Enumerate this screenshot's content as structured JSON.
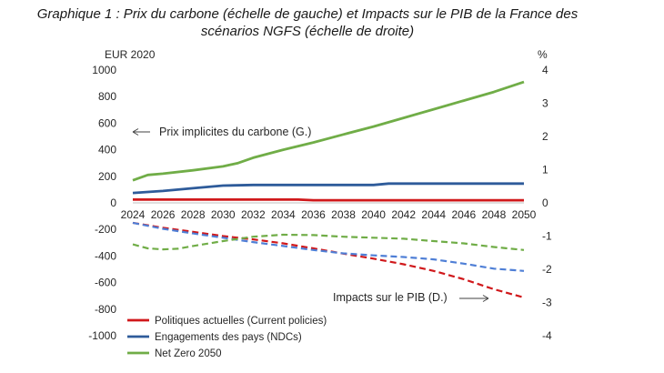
{
  "chart_data": {
    "type": "line",
    "title_line1": "Graphique 1 : Prix du carbone (échelle de gauche) et Impacts sur le PIB de la France des",
    "title_line2": "scénarios NGFS (échelle de droite)",
    "y_left_unit": "EUR 2020",
    "y_right_unit": "%",
    "y_left_range": [
      -1000,
      1000
    ],
    "y_left_ticks": [
      1000,
      800,
      600,
      400,
      200,
      0,
      -200,
      -400,
      -600,
      -800,
      -1000
    ],
    "y_right_range": [
      -4,
      4
    ],
    "y_right_ticks": [
      4,
      3,
      2,
      1,
      0,
      -1,
      -2,
      -3,
      -4
    ],
    "x_ticks": [
      2024,
      2026,
      2028,
      2030,
      2032,
      2034,
      2036,
      2038,
      2040,
      2042,
      2044,
      2046,
      2048,
      2050
    ],
    "x_range": [
      2024,
      2050
    ],
    "annotation_carbon": "Prix implicites du carbone (G.)",
    "annotation_pib": "Impacts sur le PIB (D.)",
    "colors": {
      "current": "#d0181b",
      "ndc": "#2e5b9a",
      "nz": "#70ad47",
      "ndc_dash": "#4f7fd6"
    },
    "legend": [
      {
        "key": "current",
        "label": "Politiques actuelles (Current policies)"
      },
      {
        "key": "ndc",
        "label": "Engagements des pays (NDCs)"
      },
      {
        "key": "nz",
        "label": "Net Zero 2050"
      }
    ],
    "series_carbon_price": [
      {
        "name": "Politiques actuelles (Current policies)",
        "key": "current",
        "x": [
          2024,
          2030,
          2035,
          2036,
          2050
        ],
        "y": [
          25,
          25,
          25,
          20,
          20
        ]
      },
      {
        "name": "Engagements des pays (NDCs)",
        "key": "ndc",
        "x": [
          2024,
          2026,
          2028,
          2030,
          2032,
          2036,
          2040,
          2041,
          2050
        ],
        "y": [
          75,
          90,
          110,
          130,
          135,
          135,
          135,
          145,
          145
        ]
      },
      {
        "name": "Net Zero 2050",
        "key": "nz",
        "x": [
          2024,
          2025,
          2026,
          2028,
          2030,
          2031,
          2032,
          2034,
          2036,
          2038,
          2040,
          2042,
          2044,
          2046,
          2048,
          2050
        ],
        "y": [
          170,
          210,
          220,
          245,
          275,
          300,
          340,
          400,
          455,
          515,
          575,
          640,
          705,
          770,
          835,
          910
        ]
      }
    ],
    "series_gdp_impact": [
      {
        "name": "Politiques actuelles (Current policies)",
        "key": "current",
        "x": [
          2024,
          2026,
          2028,
          2030,
          2032,
          2034,
          2036,
          2038,
          2040,
          2042,
          2044,
          2046,
          2048,
          2050
        ],
        "y": [
          -0.6,
          -0.75,
          -0.87,
          -1.0,
          -1.1,
          -1.22,
          -1.37,
          -1.53,
          -1.68,
          -1.85,
          -2.05,
          -2.3,
          -2.6,
          -2.85
        ]
      },
      {
        "name": "Engagements des pays (NDCs)",
        "key": "ndc_dash",
        "x": [
          2024,
          2026,
          2028,
          2030,
          2032,
          2034,
          2036,
          2038,
          2040,
          2042,
          2044,
          2046,
          2048,
          2050
        ],
        "y": [
          -0.6,
          -0.78,
          -0.92,
          -1.05,
          -1.18,
          -1.3,
          -1.42,
          -1.52,
          -1.58,
          -1.63,
          -1.7,
          -1.83,
          -1.98,
          -2.05
        ]
      },
      {
        "name": "Net Zero 2050",
        "key": "nz",
        "x": [
          2024,
          2025,
          2026,
          2027,
          2028,
          2030,
          2032,
          2034,
          2036,
          2038,
          2040,
          2042,
          2044,
          2046,
          2048,
          2050
        ],
        "y": [
          -1.25,
          -1.37,
          -1.4,
          -1.38,
          -1.3,
          -1.15,
          -1.02,
          -0.96,
          -0.97,
          -1.02,
          -1.05,
          -1.08,
          -1.15,
          -1.22,
          -1.33,
          -1.42
        ]
      }
    ]
  }
}
